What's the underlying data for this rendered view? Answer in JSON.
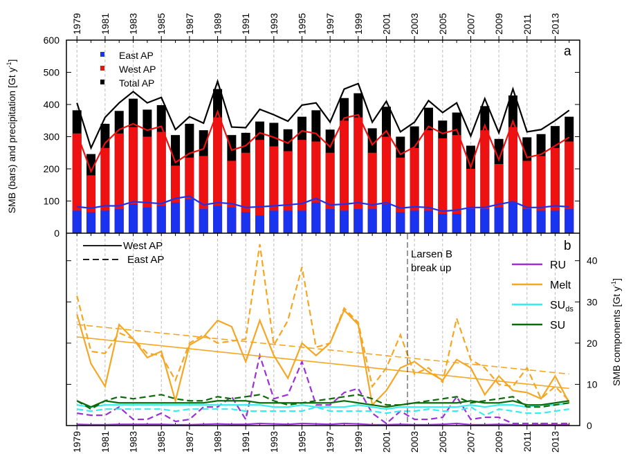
{
  "chart_data": [
    {
      "type": "bar",
      "ylabel": "SMB (bars) and precipitation [Gt y",
      "ylabel_sup": "-1",
      "ylabel_end": "]",
      "panel": "a",
      "x": [
        1979,
        1980,
        1981,
        1982,
        1983,
        1984,
        1985,
        1986,
        1987,
        1988,
        1989,
        1990,
        1991,
        1992,
        1993,
        1994,
        1995,
        1996,
        1997,
        1998,
        1999,
        2000,
        2001,
        2002,
        2003,
        2004,
        2005,
        2006,
        2007,
        2008,
        2009,
        2010,
        2011,
        2012,
        2013,
        2014
      ],
      "xlim": [
        1978.25,
        2014.75
      ],
      "xticks": [
        1979,
        1981,
        1983,
        1985,
        1987,
        1989,
        1991,
        1993,
        1995,
        1997,
        1999,
        2001,
        2003,
        2005,
        2007,
        2009,
        2011,
        2013
      ],
      "ylim": [
        0,
        600
      ],
      "yticks": [
        0,
        100,
        200,
        300,
        400,
        500,
        600
      ],
      "grid": true,
      "series": [
        {
          "name": "Total AP",
          "color": "#000000",
          "values": [
            382,
            246,
            340,
            380,
            418,
            384,
            398,
            305,
            340,
            320,
            448,
            305,
            312,
            347,
            343,
            323,
            362,
            382,
            322,
            420,
            435,
            326,
            393,
            300,
            332,
            390,
            350,
            375,
            272,
            395,
            293,
            428,
            298,
            308,
            333,
            362
          ],
          "line_values": [
            405,
            265,
            360,
            405,
            440,
            405,
            422,
            322,
            362,
            342,
            472,
            330,
            328,
            385,
            368,
            348,
            398,
            405,
            345,
            448,
            465,
            345,
            410,
            315,
            345,
            412,
            375,
            405,
            302,
            418,
            312,
            448,
            315,
            322,
            350,
            382
          ]
        },
        {
          "name": "West AP",
          "color": "#ee1111",
          "values": [
            310,
            180,
            265,
            310,
            330,
            300,
            315,
            210,
            235,
            240,
            360,
            225,
            250,
            290,
            270,
            255,
            290,
            285,
            250,
            350,
            360,
            250,
            300,
            235,
            265,
            320,
            295,
            305,
            200,
            320,
            215,
            330,
            225,
            240,
            265,
            285
          ],
          "line_values": [
            310,
            192,
            280,
            322,
            340,
            320,
            332,
            220,
            248,
            262,
            378,
            258,
            272,
            312,
            298,
            280,
            318,
            310,
            268,
            358,
            368,
            275,
            318,
            245,
            268,
            332,
            310,
            322,
            205,
            335,
            228,
            348,
            235,
            245,
            272,
            298
          ]
        },
        {
          "name": "East AP",
          "color": "#1a33ee",
          "values": [
            70,
            65,
            70,
            75,
            90,
            80,
            85,
            95,
            105,
            75,
            85,
            80,
            65,
            55,
            70,
            70,
            70,
            95,
            75,
            70,
            75,
            75,
            90,
            65,
            70,
            70,
            60,
            60,
            75,
            75,
            80,
            95,
            75,
            70,
            70,
            75
          ],
          "line_values": [
            82,
            78,
            85,
            85,
            98,
            95,
            92,
            108,
            115,
            88,
            95,
            92,
            80,
            82,
            85,
            88,
            92,
            108,
            88,
            90,
            95,
            88,
            95,
            78,
            82,
            80,
            68,
            72,
            80,
            80,
            90,
            98,
            80,
            80,
            85,
            82
          ]
        }
      ]
    },
    {
      "type": "line",
      "panel": "b",
      "y2label": "SMB components [Gt y",
      "y2label_sup": "-1",
      "y2label_end": "]",
      "y2lim": [
        0,
        46.5
      ],
      "y2ticks": [
        0,
        10,
        20,
        30,
        40
      ],
      "line_styles": [
        {
          "name": "West AP",
          "dash": false
        },
        {
          "name": "East AP",
          "dash": true
        }
      ],
      "event": {
        "x": 2002.5,
        "label": [
          "Larsen B",
          "break up"
        ]
      },
      "series": [
        {
          "name": "RU",
          "color": "#9b30d8",
          "values": [
            0.3,
            0.2,
            0.2,
            0.3,
            0.3,
            0.3,
            0.3,
            0.2,
            0.2,
            0.3,
            0.4,
            0.3,
            0.3,
            0.5,
            0.4,
            0.3,
            0.5,
            0.4,
            0.3,
            0.5,
            0.4,
            0.2,
            0.2,
            0.3,
            0.2,
            0.2,
            0.3,
            0.5,
            0.2,
            0.2,
            0.3,
            0.2,
            0.1,
            0.2,
            0.2,
            0.2
          ],
          "east_values": [
            3,
            2.5,
            2.5,
            4.5,
            1.5,
            1.5,
            3,
            1,
            1.5,
            4.5,
            4.5,
            7,
            1.5,
            17,
            6.5,
            7.5,
            15.5,
            5,
            5,
            8,
            9,
            3,
            0.5,
            3.5,
            1.5,
            1.5,
            2,
            7,
            1.5,
            2,
            2,
            0.5,
            0.5,
            0.5,
            0.5,
            0.5
          ]
        },
        {
          "name": "Melt",
          "color": "#f5a623",
          "values": [
            27,
            15,
            9.5,
            24.5,
            21,
            16.5,
            18,
            6,
            19.5,
            21.5,
            25.5,
            24,
            15.5,
            25.5,
            17,
            11.5,
            20,
            17,
            20,
            28,
            24.5,
            5,
            8.5,
            14,
            15.5,
            13,
            11,
            16,
            14,
            7.5,
            12,
            8.5,
            8,
            6.5,
            12,
            5.5
          ],
          "east_values": [
            31.5,
            18,
            17.5,
            22.5,
            21,
            17.5,
            17,
            11,
            20,
            22,
            20,
            20.5,
            21,
            44,
            19.5,
            25.5,
            38.5,
            19,
            20,
            28.5,
            25,
            9.5,
            14,
            22,
            12.5,
            14,
            10.5,
            26,
            16,
            14,
            10,
            9.5,
            14,
            6.5,
            9.5,
            6
          ],
          "trend": [
            21.5,
            9
          ],
          "east_trend": [
            24.5,
            12.5
          ]
        },
        {
          "name": "SU",
          "name_sub": "ds",
          "color": "#33eeee",
          "values": [
            5,
            4.5,
            5,
            5,
            5,
            5,
            5,
            5,
            5,
            5,
            5,
            5,
            5,
            5,
            4.5,
            4.5,
            5,
            4.5,
            4.5,
            4.5,
            5,
            4.5,
            4,
            4.5,
            4.5,
            4.5,
            4.5,
            4.5,
            5,
            4.5,
            5,
            5,
            4.5,
            5,
            5,
            5.5
          ],
          "east_values": [
            4,
            3.5,
            4,
            4,
            4,
            4,
            4,
            3.5,
            4,
            4,
            4,
            4,
            3.5,
            3.5,
            3.5,
            3.5,
            3.5,
            4.5,
            3.5,
            3.5,
            3.5,
            3.5,
            3,
            3.5,
            3.5,
            4,
            3.5,
            3.5,
            4.5,
            2.5,
            4,
            3.5,
            3,
            3,
            3.5,
            4
          ]
        },
        {
          "name": "SU",
          "color": "#0b6b0b",
          "values": [
            6,
            4.5,
            6,
            5.5,
            5.5,
            5.5,
            5.5,
            5.5,
            5.5,
            5.5,
            6,
            6,
            6,
            5.5,
            5.5,
            5.5,
            5.5,
            5.5,
            5.5,
            6,
            5.5,
            5,
            4.5,
            5,
            5.5,
            5.5,
            5.5,
            5.5,
            6,
            5.5,
            5.5,
            6,
            5,
            5,
            5.5,
            6
          ],
          "east_values": [
            6,
            4,
            6,
            7,
            6.5,
            7,
            7.5,
            6.5,
            6,
            6,
            7,
            6.5,
            7,
            7.5,
            6,
            5,
            5.5,
            6,
            6.5,
            7,
            7.5,
            6.5,
            5,
            5,
            5.5,
            6,
            6.5,
            7,
            5.5,
            6,
            6.5,
            7,
            4.5,
            4.5,
            5,
            5.5
          ]
        }
      ]
    }
  ]
}
